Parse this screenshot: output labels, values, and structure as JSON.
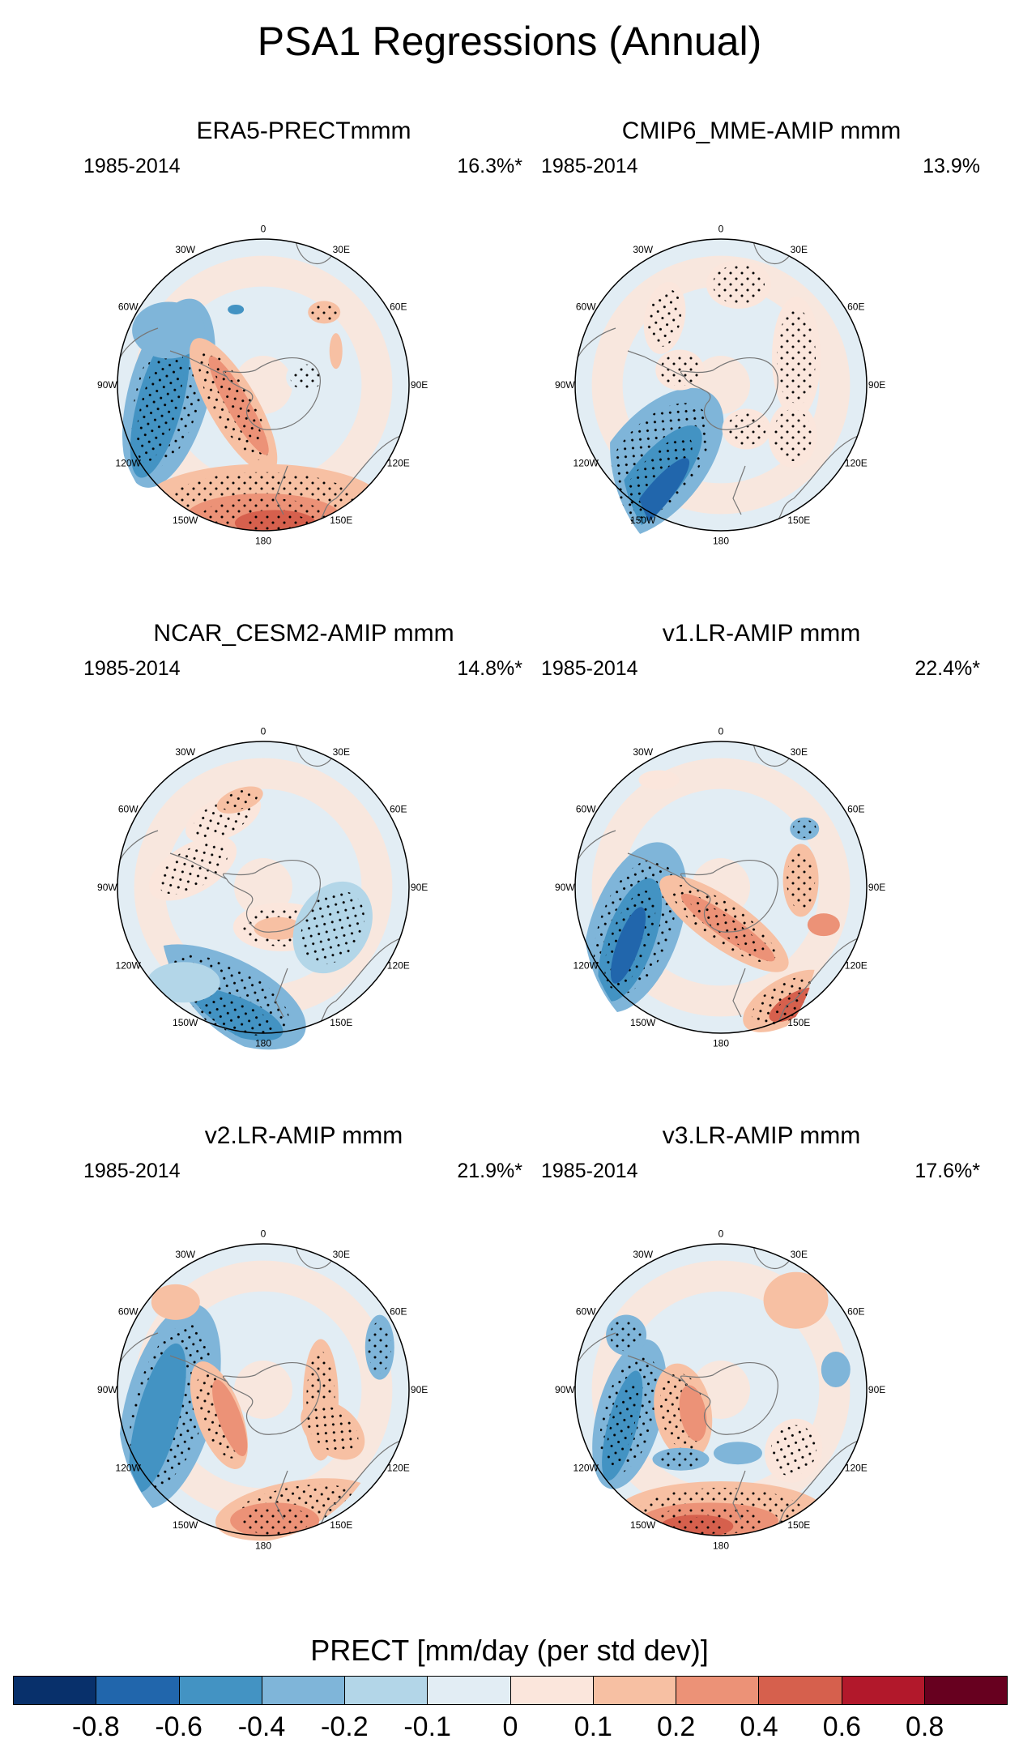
{
  "figure": {
    "title": "PSA1 Regressions (Annual)",
    "colorbar_title": "PRECT [mm/day (per std dev)]",
    "colorbar_colors": [
      "#08306b",
      "#2166ac",
      "#4393c3",
      "#7fb5d9",
      "#b3d6e8",
      "#e2edf4",
      "#fbe6dc",
      "#f7c0a3",
      "#ec9277",
      "#d6604d",
      "#b2182b",
      "#67001f"
    ],
    "colorbar_ticks": [
      "-0.8",
      "-0.6",
      "-0.4",
      "-0.2",
      "-0.1",
      "0",
      "0.1",
      "0.2",
      "0.4",
      "0.6",
      "0.8"
    ],
    "lon_labels": [
      "0",
      "30E",
      "60E",
      "90E",
      "120E",
      "150E",
      "180",
      "150W",
      "120W",
      "90W",
      "60W",
      "30W"
    ]
  },
  "panels": [
    {
      "title": "ERA5-PRECTmmm",
      "years": "1985-2014",
      "pct": "16.3%*"
    },
    {
      "title": "CMIP6_MME-AMIP  mmm",
      "years": "1985-2014",
      "pct": "13.9%"
    },
    {
      "title": "NCAR_CESM2-AMIP  mmm",
      "years": "1985-2014",
      "pct": "14.8%*"
    },
    {
      "title": "v1.LR-AMIP  mmm",
      "years": "1985-2014",
      "pct": "22.4%*"
    },
    {
      "title": "v2.LR-AMIP  mmm",
      "years": "1985-2014",
      "pct": "21.9%*"
    },
    {
      "title": "v3.LR-AMIP  mmm",
      "years": "1985-2014",
      "pct": "17.6%*"
    }
  ]
}
